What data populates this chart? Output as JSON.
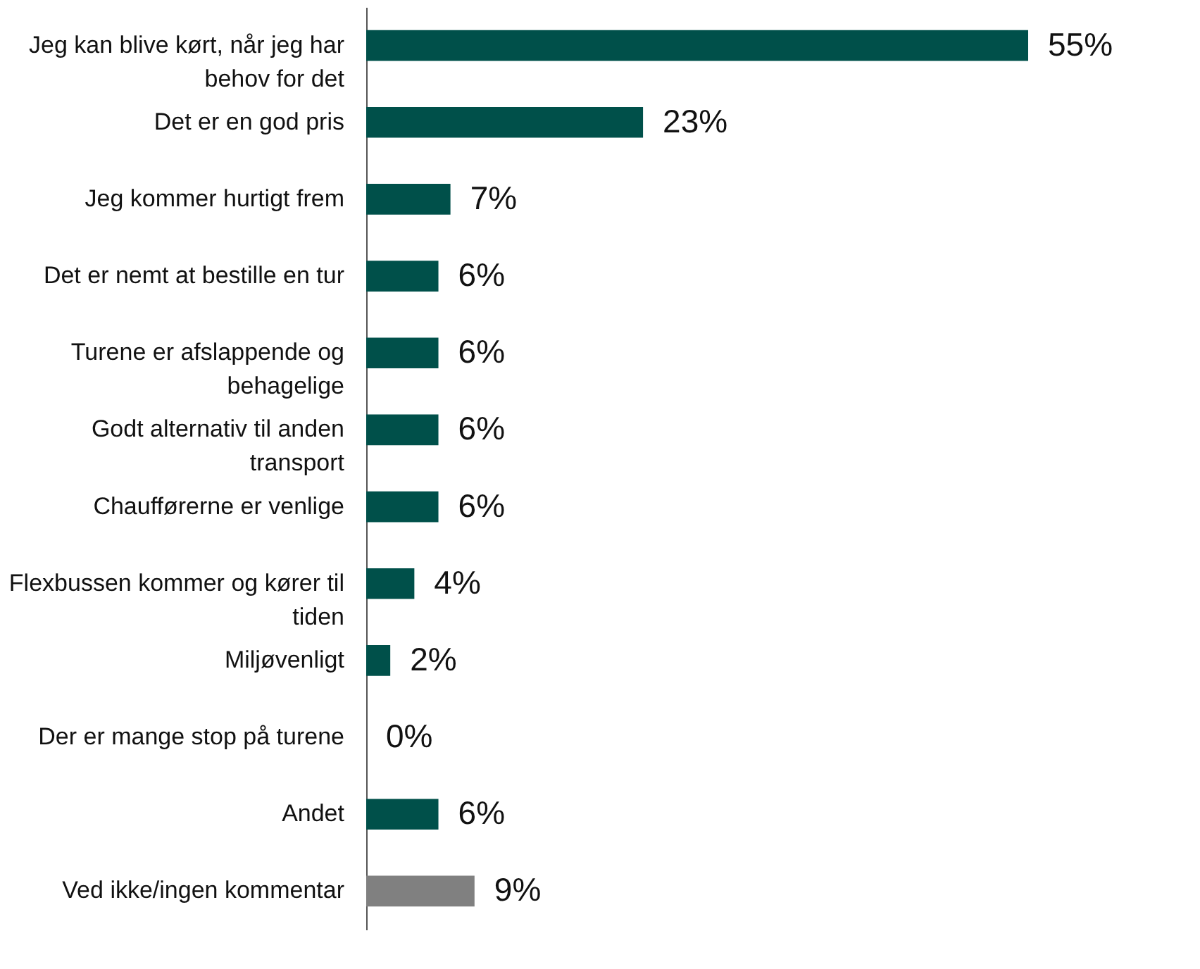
{
  "chart_data": {
    "type": "bar",
    "orientation": "horizontal",
    "categories": [
      "Jeg kan blive kørt, når jeg har behov for det",
      "Det er en god pris",
      "Jeg kommer hurtigt frem",
      "Det er nemt at bestille en tur",
      "Turene er afslappende og behagelige",
      "Godt alternativ til anden transport",
      "Chaufførerne er venlige",
      "Flexbussen kommer og kører til tiden",
      "Miljøvenligt",
      "Der er mange stop på turene",
      "Andet",
      "Ved ikke/ingen kommentar"
    ],
    "values": [
      55,
      23,
      7,
      6,
      6,
      6,
      6,
      4,
      2,
      0,
      6,
      9
    ],
    "value_labels": [
      "55%",
      "23%",
      "7%",
      "6%",
      "6%",
      "6%",
      "6%",
      "4%",
      "2%",
      "0%",
      "6%",
      "9%"
    ],
    "colors": [
      "#00504a",
      "#00504a",
      "#00504a",
      "#00504a",
      "#00504a",
      "#00504a",
      "#00504a",
      "#00504a",
      "#00504a",
      "#00504a",
      "#00504a",
      "#808080"
    ],
    "data_labels": true
  }
}
